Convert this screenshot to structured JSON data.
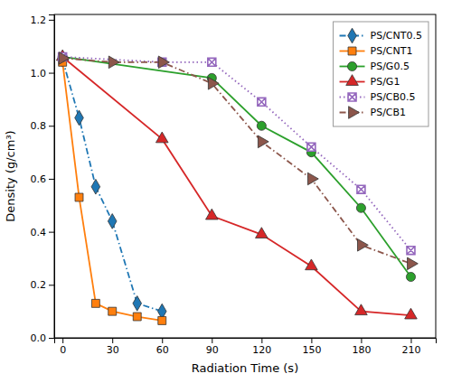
{
  "chart_data": {
    "type": "line",
    "x_label": "Radiation Time (s)",
    "y_label": "Density (g/cm³)",
    "xlim": [
      -5,
      225
    ],
    "ylim": [
      0.0,
      1.22
    ],
    "xticks": [
      0,
      30,
      60,
      90,
      120,
      150,
      180,
      210
    ],
    "yticks": [
      {
        "value": 0.0,
        "label": "0.0"
      },
      0.2,
      0.4,
      0.6,
      0.8,
      {
        "value": 1.0,
        "label": "1.0"
      },
      1.2
    ],
    "grid": false,
    "legend": "upper right",
    "series": [
      {
        "name": "PS/CNT0.5",
        "marker": "diamond",
        "line_style": "dashdot",
        "x": [
          0,
          10,
          20,
          30,
          45,
          60
        ],
        "values": [
          1.05,
          0.83,
          0.57,
          0.44,
          0.13,
          0.1
        ]
      },
      {
        "name": "PS/CNT1",
        "marker": "square",
        "line_style": "solid",
        "x": [
          0,
          10,
          20,
          30,
          45,
          60
        ],
        "values": [
          1.04,
          0.53,
          0.13,
          0.1,
          0.08,
          0.065
        ]
      },
      {
        "name": "PS/G0.5",
        "marker": "circle",
        "line_style": "solid",
        "x": [
          0,
          90,
          120,
          150,
          180,
          210
        ],
        "values": [
          1.06,
          0.98,
          0.8,
          0.7,
          0.49,
          0.23
        ]
      },
      {
        "name": "PS/G1",
        "marker": "triangle-up",
        "line_style": "solid",
        "x": [
          0,
          60,
          90,
          120,
          150,
          180,
          210
        ],
        "values": [
          1.06,
          0.75,
          0.46,
          0.39,
          0.27,
          0.1,
          0.085
        ]
      },
      {
        "name": "PS/CB0.5",
        "marker": "square-x",
        "line_style": "dotted",
        "x": [
          0,
          60,
          90,
          120,
          150,
          180,
          210
        ],
        "values": [
          1.06,
          1.04,
          1.04,
          0.89,
          0.72,
          0.56,
          0.33
        ]
      },
      {
        "name": "PS/CB1",
        "marker": "triangle-right",
        "line_style": "dashdot",
        "x": [
          0,
          30,
          60,
          90,
          120,
          150,
          180,
          210
        ],
        "values": [
          1.055,
          1.04,
          1.04,
          0.96,
          0.74,
          0.6,
          0.35,
          0.28
        ]
      }
    ]
  }
}
